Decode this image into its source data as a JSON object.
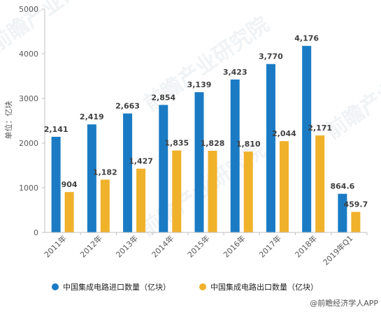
{
  "chart_data": {
    "type": "bar",
    "categories": [
      "2011年",
      "2012年",
      "2013年",
      "2014年",
      "2015年",
      "2016年",
      "2017年",
      "2018年",
      "2019年Q1"
    ],
    "series": [
      {
        "name": "中国集成电路进口数量（亿块）",
        "values": [
          2141,
          2419,
          2663,
          2854,
          3139,
          3423,
          3770,
          4176,
          864.6
        ],
        "labels": [
          "2,141",
          "2,419",
          "2,663",
          "2,854",
          "3,139",
          "3,423",
          "3,770",
          "4,176",
          "864.6"
        ]
      },
      {
        "name": "中国集成电路出口数量（亿块）",
        "values": [
          904,
          1182,
          1427,
          1835,
          1828,
          1810,
          2044,
          2171,
          459.7
        ],
        "labels": [
          "904",
          "1,182",
          "1,427",
          "1,835",
          "1,828",
          "1,810",
          "2,044",
          "2,171",
          "459.7"
        ]
      }
    ],
    "ylabel": "单位：亿块",
    "ylim": [
      0,
      5000
    ],
    "yticks": [
      0,
      1000,
      2000,
      3000,
      4000,
      5000
    ],
    "grid": false,
    "legend_position": "bottom",
    "colors": [
      "#1a7bc4",
      "#f0b12b"
    ],
    "source": "@前瞻经济学人APP",
    "watermark": "前瞻产业研究院"
  }
}
